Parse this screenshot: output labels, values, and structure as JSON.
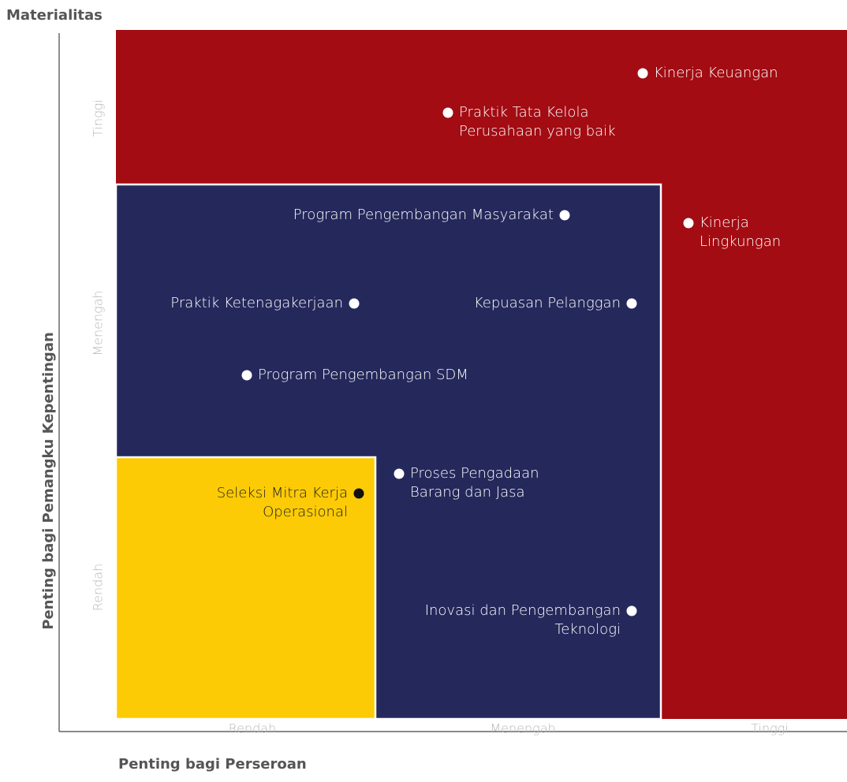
{
  "title": "Materialitas",
  "y_axis": {
    "label": "Penting bagi Pemangku Kepentingan",
    "levels": [
      "Tinggi",
      "Menengah",
      "Rendah"
    ]
  },
  "x_axis": {
    "label": "Penting bagi Perseroan",
    "levels": [
      "Rendah",
      "Menengah",
      "Tinggi"
    ]
  },
  "items": [
    {
      "lines": [
        "Kinerja Keuangan"
      ]
    },
    {
      "lines": [
        "Praktik Tata Kelola",
        "Perusahaan yang baik"
      ]
    },
    {
      "lines": [
        "Program Pengembangan Masyarakat"
      ]
    },
    {
      "lines": [
        "Kinerja",
        "Lingkungan"
      ]
    },
    {
      "lines": [
        "Praktik Ketenagakerjaan"
      ]
    },
    {
      "lines": [
        "Kepuasan Pelanggan"
      ]
    },
    {
      "lines": [
        "Program Pengembangan SDM"
      ]
    },
    {
      "lines": [
        "Proses Pengadaan",
        "Barang dan Jasa"
      ]
    },
    {
      "lines": [
        "Seleksi Mitra Kerja",
        "Operasional"
      ]
    },
    {
      "lines": [
        "Inovasi dan Pengembangan",
        "Teknologi"
      ]
    }
  ]
}
